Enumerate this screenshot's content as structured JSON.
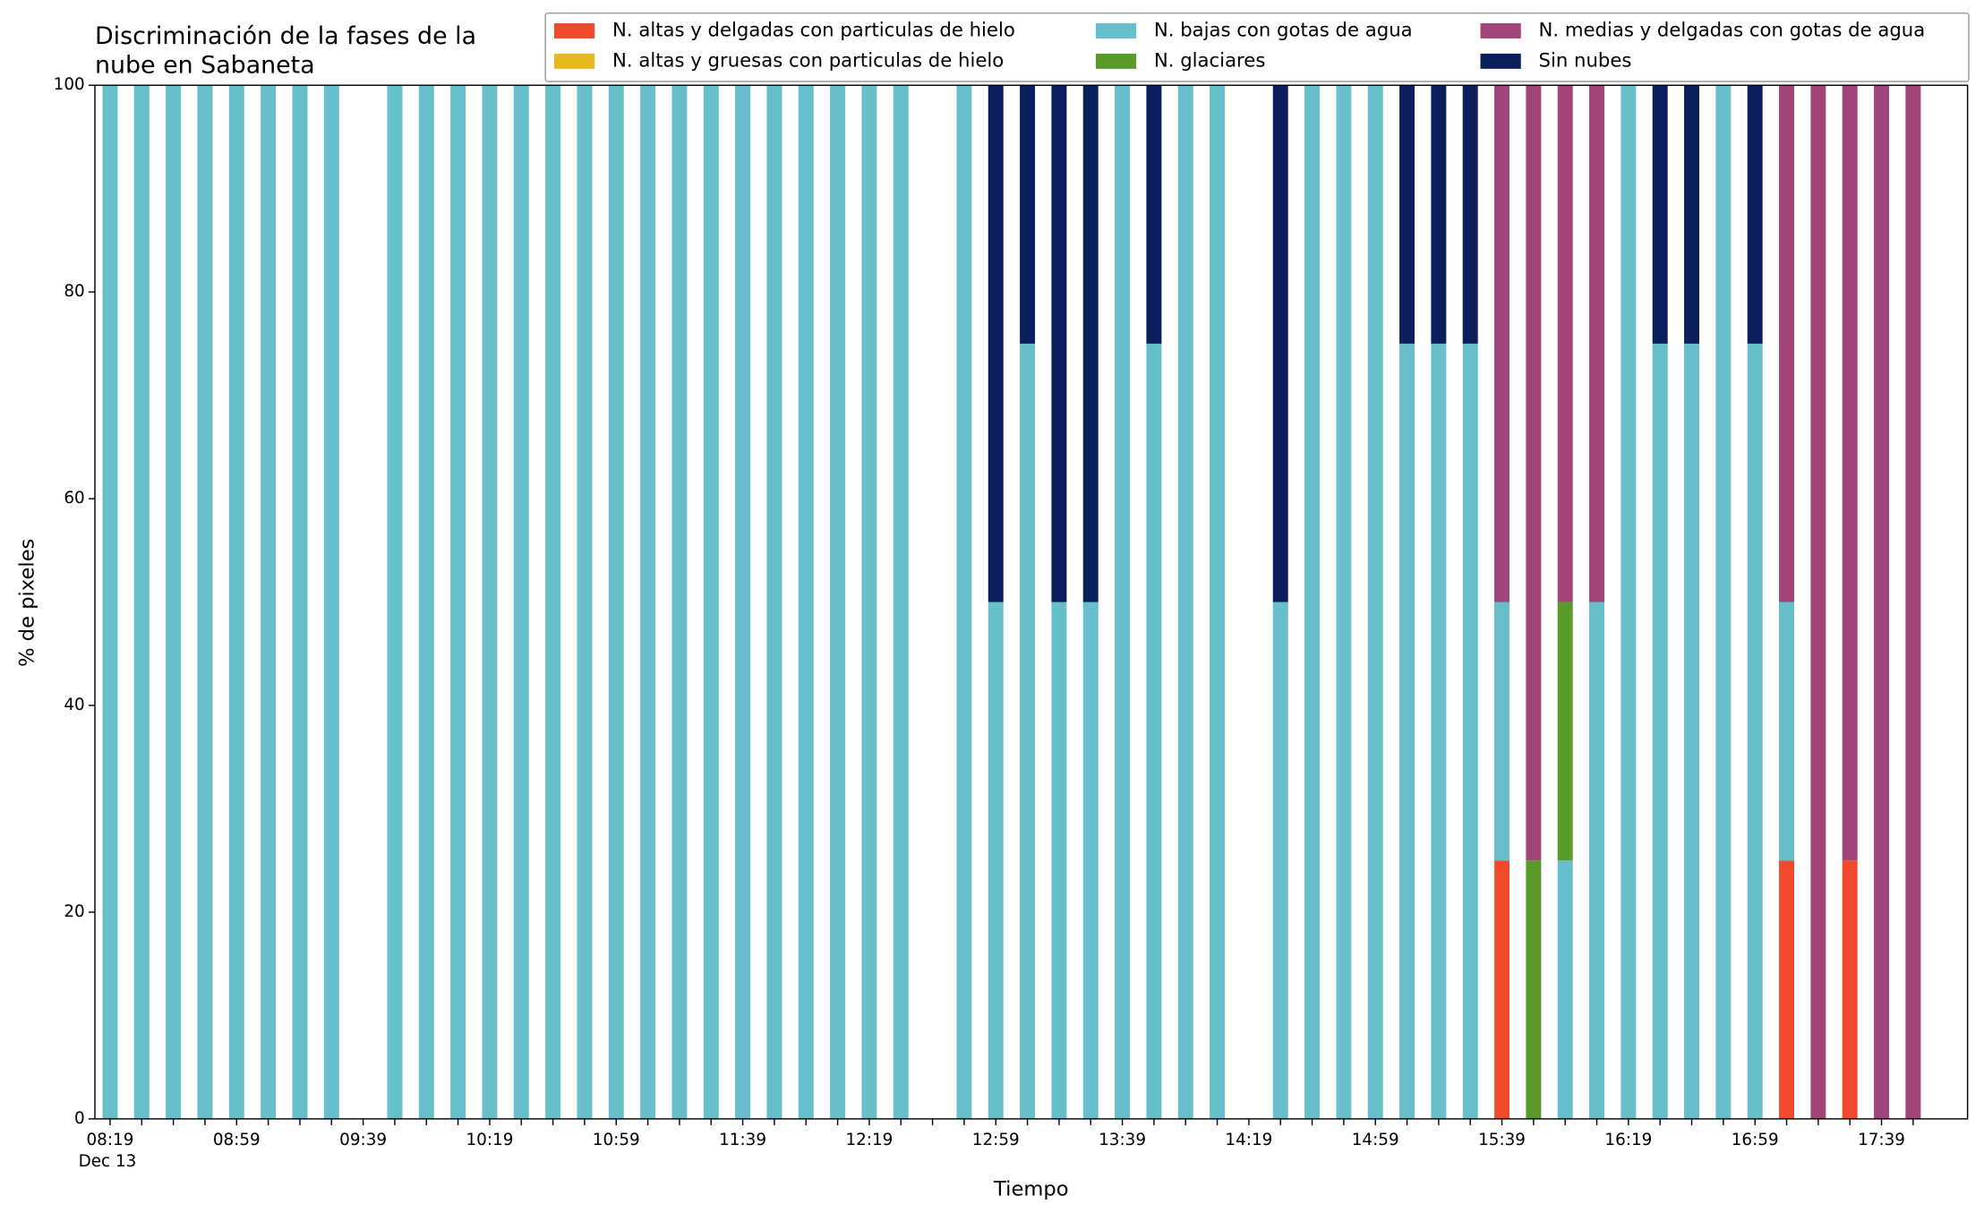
{
  "chart_data": {
    "type": "stacked_bar",
    "title": [
      "Discriminación de la fases de la",
      "nube en Sabaneta"
    ],
    "xlabel": "Tiempo",
    "ylabel": "% de pixeles",
    "date_label": "Dec 13",
    "categories": [
      "08:19",
      null,
      null,
      null,
      "08:59",
      null,
      null,
      null,
      "09:39",
      null,
      null,
      null,
      "10:19",
      null,
      null,
      null,
      "10:59",
      null,
      null,
      null,
      "11:39",
      null,
      null,
      null,
      "12:19",
      null,
      null,
      null,
      "12:59",
      null,
      null,
      null,
      "13:39",
      null,
      null,
      null,
      "14:19",
      null,
      null,
      null,
      "14:59",
      null,
      null,
      null,
      "15:39",
      null,
      null,
      null,
      "16:19",
      null,
      null,
      null,
      "16:59",
      null,
      null,
      null,
      "17:39",
      null
    ],
    "ylim": [
      0,
      100
    ],
    "yticks": [
      0,
      20,
      40,
      60,
      80,
      100
    ],
    "legend": "top-right",
    "series": [
      {
        "name": "N. altas y delgadas con particulas de hielo",
        "color": "#ee4a2b",
        "values": [
          0,
          0,
          0,
          0,
          0,
          0,
          0,
          0,
          null,
          0,
          0,
          0,
          0,
          0,
          0,
          0,
          0,
          0,
          0,
          0,
          0,
          0,
          0,
          0,
          0,
          0,
          null,
          0,
          0,
          0,
          0,
          0,
          0,
          0,
          0,
          0,
          null,
          0,
          0,
          0,
          0,
          0,
          0,
          0,
          25,
          0,
          0,
          0,
          0,
          0,
          0,
          0,
          0,
          25,
          0,
          25,
          0,
          0
        ]
      },
      {
        "name": "N. altas y gruesas con particulas de hielo",
        "color": "#e6b820",
        "values": [
          0,
          0,
          0,
          0,
          0,
          0,
          0,
          0,
          null,
          0,
          0,
          0,
          0,
          0,
          0,
          0,
          0,
          0,
          0,
          0,
          0,
          0,
          0,
          0,
          0,
          0,
          null,
          0,
          0,
          0,
          0,
          0,
          0,
          0,
          0,
          0,
          null,
          0,
          0,
          0,
          0,
          0,
          0,
          0,
          0,
          0,
          0,
          0,
          0,
          0,
          0,
          0,
          0,
          0,
          0,
          0,
          0,
          0
        ]
      },
      {
        "name": "N. bajas con gotas de agua",
        "color": "#66bfca",
        "values": [
          100,
          100,
          100,
          100,
          100,
          100,
          100,
          100,
          null,
          100,
          100,
          100,
          100,
          100,
          100,
          100,
          100,
          100,
          100,
          100,
          100,
          100,
          100,
          100,
          100,
          100,
          null,
          100,
          50,
          75,
          50,
          50,
          100,
          75,
          100,
          100,
          null,
          50,
          100,
          100,
          100,
          75,
          75,
          75,
          25,
          0,
          25,
          50,
          100,
          75,
          75,
          100,
          75,
          25,
          0,
          0,
          0,
          0
        ]
      },
      {
        "name": "N. glaciares",
        "color": "#5a9a2a",
        "values": [
          0,
          0,
          0,
          0,
          0,
          0,
          0,
          0,
          null,
          0,
          0,
          0,
          0,
          0,
          0,
          0,
          0,
          0,
          0,
          0,
          0,
          0,
          0,
          0,
          0,
          0,
          null,
          0,
          0,
          0,
          0,
          0,
          0,
          0,
          0,
          0,
          null,
          0,
          0,
          0,
          0,
          0,
          0,
          0,
          0,
          25,
          25,
          0,
          0,
          0,
          0,
          0,
          0,
          0,
          0,
          0,
          0,
          0
        ]
      },
      {
        "name": "N. medias y delgadas con gotas de agua",
        "color": "#a0447a",
        "values": [
          0,
          0,
          0,
          0,
          0,
          0,
          0,
          0,
          null,
          0,
          0,
          0,
          0,
          0,
          0,
          0,
          0,
          0,
          0,
          0,
          0,
          0,
          0,
          0,
          0,
          0,
          null,
          0,
          0,
          0,
          0,
          0,
          0,
          0,
          0,
          0,
          null,
          0,
          0,
          0,
          0,
          0,
          0,
          0,
          50,
          75,
          50,
          50,
          0,
          0,
          0,
          0,
          0,
          50,
          100,
          75,
          100,
          100
        ]
      },
      {
        "name": "Sin nubes",
        "color": "#0a1f5c",
        "values": [
          0,
          0,
          0,
          0,
          0,
          0,
          0,
          0,
          null,
          0,
          0,
          0,
          0,
          0,
          0,
          0,
          0,
          0,
          0,
          0,
          0,
          0,
          0,
          0,
          0,
          0,
          null,
          0,
          50,
          25,
          50,
          50,
          0,
          25,
          0,
          0,
          null,
          50,
          0,
          0,
          0,
          25,
          25,
          25,
          0,
          0,
          0,
          0,
          0,
          25,
          25,
          0,
          25,
          0,
          0,
          0,
          0,
          0
        ]
      }
    ]
  }
}
